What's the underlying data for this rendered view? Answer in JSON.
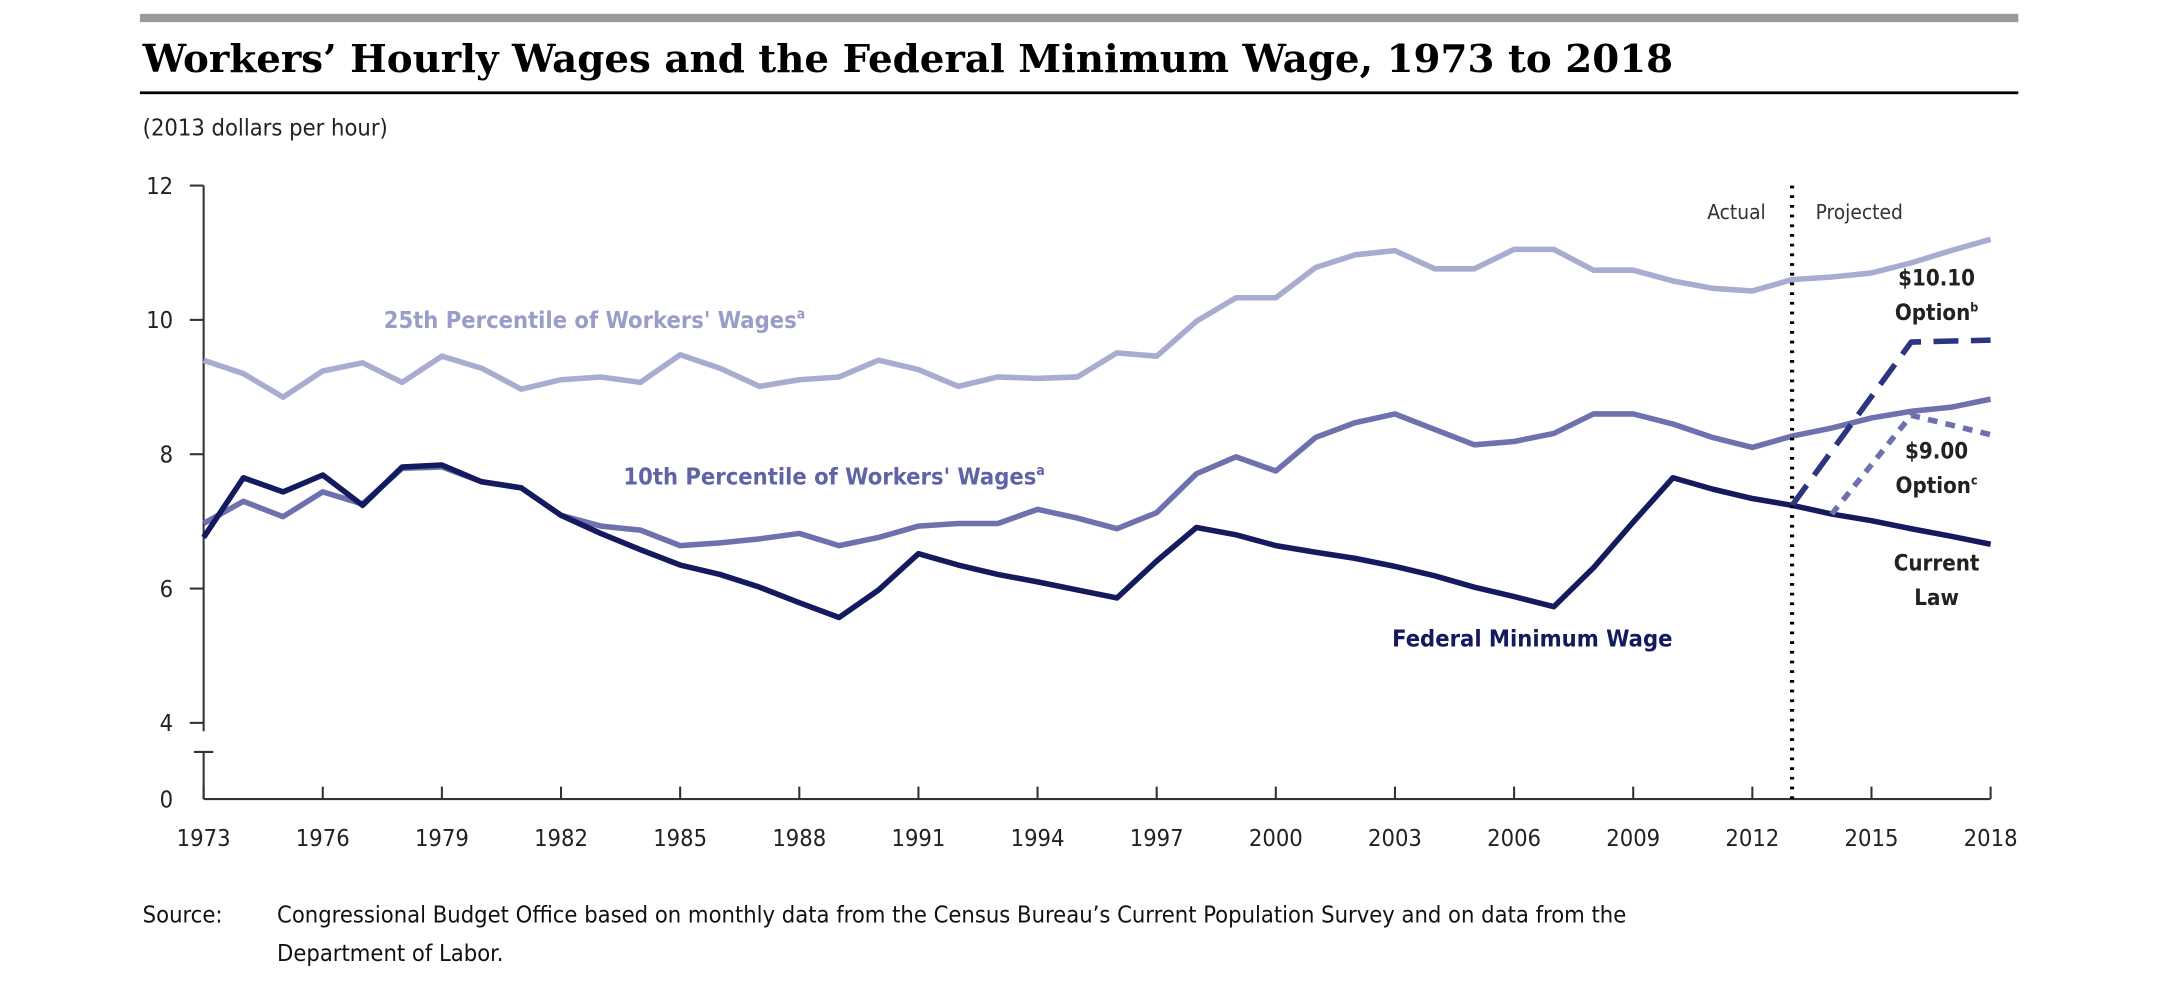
{
  "figure": {
    "title": "Workers’ Hourly Wages and the Federal Minimum Wage, 1973 to 2018",
    "units": "(2013 dollars per hour)",
    "source_label": "Source:",
    "source_line1": "Congressional Budget Office based on monthly data from the Census Bureau’s Current Population Survey and on data from the",
    "source_line2": "Department of Labor."
  },
  "chart_data": {
    "type": "line",
    "title": "Workers’ Hourly Wages and the Federal Minimum Wage, 1973 to 2018",
    "ylabel": "(2013 dollars per hour)",
    "xlabel": "",
    "xlim": [
      1973,
      2018
    ],
    "ylim": [
      0,
      12
    ],
    "y_axis_break": [
      0,
      4
    ],
    "x_ticks": [
      "1973",
      "1976",
      "1979",
      "1982",
      "1985",
      "1988",
      "1991",
      "1994",
      "1997",
      "2000",
      "2003",
      "2006",
      "2009",
      "2012",
      "2015",
      "2018"
    ],
    "y_ticks": [
      "0",
      "4",
      "6",
      "8",
      "10",
      "12"
    ],
    "grid": false,
    "divider": {
      "year": 2013,
      "left_label": "Actual",
      "right_label": "Projected"
    },
    "x": [
      1973,
      1974,
      1975,
      1976,
      1977,
      1978,
      1979,
      1980,
      1981,
      1982,
      1983,
      1984,
      1985,
      1986,
      1987,
      1988,
      1989,
      1990,
      1991,
      1992,
      1993,
      1994,
      1995,
      1996,
      1997,
      1998,
      1999,
      2000,
      2001,
      2002,
      2003,
      2004,
      2005,
      2006,
      2007,
      2008,
      2009,
      2010,
      2011,
      2012,
      2013,
      2014,
      2015,
      2016,
      2017,
      2018
    ],
    "series": [
      {
        "name": "25th Percentile of Workers' Wages",
        "superscript": "a",
        "color": "#a9acd1",
        "style": "solid",
        "values": [
          9.4,
          9.2,
          8.85,
          9.24,
          9.36,
          9.07,
          9.46,
          9.28,
          8.97,
          9.11,
          9.15,
          9.07,
          9.48,
          9.28,
          9.01,
          9.11,
          9.15,
          9.4,
          9.26,
          9.01,
          9.15,
          9.13,
          9.15,
          9.51,
          9.46,
          9.98,
          10.33,
          10.33,
          10.78,
          10.97,
          11.03,
          10.76,
          10.76,
          11.05,
          11.05,
          10.74,
          10.74,
          10.58,
          10.47,
          10.43,
          10.6,
          10.64,
          10.7,
          10.85,
          11.03,
          11.2
        ]
      },
      {
        "name": "10th Percentile of Workers' Wages",
        "superscript": "a",
        "color": "#6d71ad",
        "style": "solid",
        "values": [
          6.97,
          7.3,
          7.07,
          7.44,
          7.26,
          7.79,
          7.81,
          7.59,
          7.5,
          7.09,
          6.93,
          6.87,
          6.64,
          6.68,
          6.74,
          6.82,
          6.64,
          6.76,
          6.93,
          6.97,
          6.97,
          7.18,
          7.05,
          6.89,
          7.13,
          7.71,
          7.96,
          7.75,
          8.25,
          8.47,
          8.6,
          8.37,
          8.14,
          8.19,
          8.31,
          8.6,
          8.6,
          8.45,
          8.25,
          8.1,
          8.27,
          8.39,
          8.54,
          8.64,
          8.7,
          8.82
        ]
      },
      {
        "name": "Federal Minimum Wage",
        "color": "#141a5e",
        "style": "solid",
        "values": [
          6.76,
          7.65,
          7.44,
          7.69,
          7.24,
          7.81,
          7.84,
          7.59,
          7.5,
          7.09,
          6.82,
          6.58,
          6.35,
          6.21,
          6.02,
          5.79,
          5.57,
          5.98,
          6.52,
          6.35,
          6.21,
          6.1,
          5.98,
          5.86,
          6.41,
          6.91,
          6.8,
          6.64,
          6.54,
          6.45,
          6.33,
          6.19,
          6.02,
          5.88,
          5.73,
          6.31,
          6.99,
          7.65,
          7.48,
          7.34,
          7.24,
          7.11,
          7.01,
          6.89,
          6.78,
          6.66
        ]
      },
      {
        "name": "$10.10 Option",
        "superscript": "b",
        "color": "#2b3580",
        "style": "dashed",
        "points": [
          [
            2013,
            7.24
          ],
          [
            2016,
            9.67
          ],
          [
            2018,
            9.7
          ]
        ]
      },
      {
        "name": "$9.00 Option",
        "superscript": "c",
        "color": "#6d71ad",
        "style": "dotted",
        "points": [
          [
            2014,
            7.11
          ],
          [
            2016,
            8.58
          ],
          [
            2018,
            8.29
          ]
        ]
      }
    ],
    "annotations": {
      "p25": {
        "text": "25th Percentile of Workers' Wages",
        "sup": "a"
      },
      "p10": {
        "text": "10th Percentile of Workers' Wages",
        "sup": "a"
      },
      "minwage": {
        "text": "Federal Minimum Wage"
      },
      "opt1010_1": "$10.10",
      "opt1010_2": "Option",
      "opt1010_sup": "b",
      "opt900_1": "$9.00",
      "opt900_2": "Option",
      "opt900_sup": "c",
      "current_1": "Current",
      "current_2": "Law"
    }
  }
}
